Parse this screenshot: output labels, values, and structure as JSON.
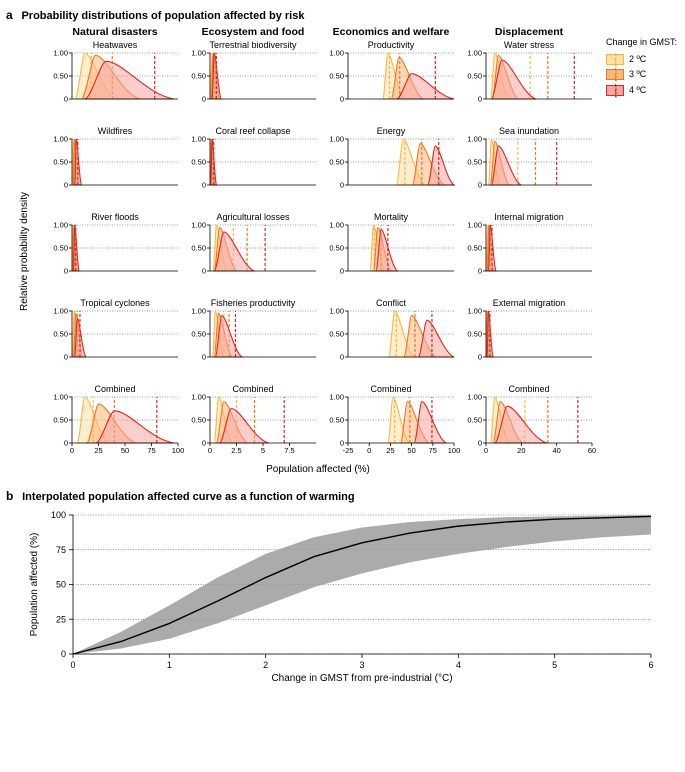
{
  "panelA": {
    "label": "a",
    "title": "Probability distributions of population affected by risk",
    "ylabel": "Relative probability density",
    "xlabel": "Population affected (%)",
    "yticks": [
      0,
      0.5,
      1.0
    ],
    "ytick_labels": [
      "0",
      "0.50",
      "1.00"
    ],
    "columns": [
      "Natural disasters",
      "Ecosystem and food",
      "Economics and welfare",
      "Displacement"
    ],
    "legend": {
      "title": "Change in GMST:",
      "items": [
        {
          "label": "2 ºC",
          "fill": "#fedfa6",
          "stroke": "#f5b942"
        },
        {
          "label": "3 ºC",
          "fill": "#fbb77a",
          "stroke": "#ef7722"
        },
        {
          "label": "4 ºC",
          "fill": "#f5a6a0",
          "stroke": "#e3261f"
        }
      ]
    },
    "colors": {
      "c2_fill": "#fedfa6",
      "c2_stroke": "#f5b942",
      "c3_fill": "#fbb77a",
      "c3_stroke": "#ef7722",
      "c4_fill": "#f5a6a0",
      "c4_stroke": "#e3261f",
      "grid": "#000000",
      "bg": "#ffffff"
    },
    "subplots": [
      [
        {
          "title": "Heatwaves",
          "xmin": 0,
          "xmax": 100,
          "xticks": [
            0,
            25,
            50,
            75,
            100
          ],
          "series": [
            {
              "key": "c2",
              "peak_x": 12,
              "peak_y": 1.0,
              "spread": 18,
              "mean": 18
            },
            {
              "key": "c3",
              "peak_x": 22,
              "peak_y": 0.95,
              "spread": 26,
              "mean": 38
            },
            {
              "key": "c4",
              "peak_x": 32,
              "peak_y": 0.82,
              "spread": 40,
              "mean": 78
            }
          ]
        },
        {
          "title": "Terrestrial biodiversity",
          "xmin": 0,
          "xmax": 10,
          "xticks": [
            0,
            2.5,
            5,
            7.5
          ],
          "series": [
            {
              "key": "c2",
              "peak_x": 0.2,
              "peak_y": 1.0,
              "spread": 0.3,
              "mean": 0.3
            },
            {
              "key": "c3",
              "peak_x": 0.3,
              "peak_y": 1.0,
              "spread": 0.35,
              "mean": 0.45
            },
            {
              "key": "c4",
              "peak_x": 0.4,
              "peak_y": 1.0,
              "spread": 0.4,
              "mean": 0.6
            }
          ]
        },
        {
          "title": "Productivity",
          "xmin": -25,
          "xmax": 100,
          "xticks": [
            -25,
            0,
            25,
            50,
            75,
            100
          ],
          "series": [
            {
              "key": "c2",
              "peak_x": 22,
              "peak_y": 1.0,
              "spread": 12,
              "mean": 24
            },
            {
              "key": "c3",
              "peak_x": 35,
              "peak_y": 0.9,
              "spread": 18,
              "mean": 36
            },
            {
              "key": "c4",
              "peak_x": 50,
              "peak_y": 0.55,
              "spread": 35,
              "mean": 78
            }
          ]
        },
        {
          "title": "Water stress",
          "xmin": 0,
          "xmax": 60,
          "xticks": [
            0,
            20,
            40,
            60
          ],
          "series": [
            {
              "key": "c2",
              "peak_x": 5,
              "peak_y": 1.0,
              "spread": 5,
              "mean": 25
            },
            {
              "key": "c3",
              "peak_x": 7,
              "peak_y": 0.95,
              "spread": 7,
              "mean": 35
            },
            {
              "key": "c4",
              "peak_x": 9,
              "peak_y": 0.85,
              "spread": 12,
              "mean": 50
            }
          ]
        }
      ],
      [
        {
          "title": "Wildfires",
          "xmin": 0,
          "xmax": 100,
          "xticks": [
            0,
            25,
            50,
            75,
            100
          ],
          "series": [
            {
              "key": "c2",
              "peak_x": 1.5,
              "peak_y": 1.0,
              "spread": 2,
              "mean": 2
            },
            {
              "key": "c3",
              "peak_x": 2.5,
              "peak_y": 1.0,
              "spread": 2.5,
              "mean": 3.5
            },
            {
              "key": "c4",
              "peak_x": 4,
              "peak_y": 1.0,
              "spread": 3,
              "mean": 5.5
            }
          ]
        },
        {
          "title": "Coral reef collapse",
          "xmin": 0,
          "xmax": 10,
          "xticks": [
            0,
            2.5,
            5,
            7.5
          ],
          "series": [
            {
              "key": "c2",
              "peak_x": 0.1,
              "peak_y": 1.0,
              "spread": 0.15,
              "mean": 0.15
            },
            {
              "key": "c3",
              "peak_x": 0.15,
              "peak_y": 1.0,
              "spread": 0.2,
              "mean": 0.25
            },
            {
              "key": "c4",
              "peak_x": 0.2,
              "peak_y": 1.0,
              "spread": 0.25,
              "mean": 0.35
            }
          ]
        },
        {
          "title": "Energy",
          "xmin": -25,
          "xmax": 100,
          "xticks": [
            -25,
            0,
            25,
            50,
            75,
            100
          ],
          "series": [
            {
              "key": "c2",
              "peak_x": 40,
              "peak_y": 1.0,
              "spread": 16,
              "mean": 42
            },
            {
              "key": "c3",
              "peak_x": 60,
              "peak_y": 0.9,
              "spread": 18,
              "mean": 62
            },
            {
              "key": "c4",
              "peak_x": 78,
              "peak_y": 0.85,
              "spread": 18,
              "mean": 82
            }
          ]
        },
        {
          "title": "Sea inundation",
          "xmin": 0,
          "xmax": 60,
          "xticks": [
            0,
            20,
            40,
            60
          ],
          "series": [
            {
              "key": "c2",
              "peak_x": 3,
              "peak_y": 1.0,
              "spread": 3,
              "mean": 18
            },
            {
              "key": "c3",
              "peak_x": 5,
              "peak_y": 0.95,
              "spread": 5,
              "mean": 28
            },
            {
              "key": "c4",
              "peak_x": 7,
              "peak_y": 0.85,
              "spread": 8,
              "mean": 40
            }
          ]
        }
      ],
      [
        {
          "title": "River floods",
          "xmin": 0,
          "xmax": 100,
          "xticks": [
            0,
            25,
            50,
            75,
            100
          ],
          "series": [
            {
              "key": "c2",
              "peak_x": 1,
              "peak_y": 1.0,
              "spread": 1.5,
              "mean": 1.5
            },
            {
              "key": "c3",
              "peak_x": 1.8,
              "peak_y": 1.0,
              "spread": 2,
              "mean": 2.5
            },
            {
              "key": "c4",
              "peak_x": 2.6,
              "peak_y": 1.0,
              "spread": 2.5,
              "mean": 3.5
            }
          ]
        },
        {
          "title": "Agricultural losses",
          "xmin": 0,
          "xmax": 10,
          "xticks": [
            0,
            2.5,
            5,
            7.5
          ],
          "series": [
            {
              "key": "c2",
              "peak_x": 0.6,
              "peak_y": 1.0,
              "spread": 0.6,
              "mean": 2.2
            },
            {
              "key": "c3",
              "peak_x": 0.9,
              "peak_y": 0.95,
              "spread": 1.0,
              "mean": 3.5
            },
            {
              "key": "c4",
              "peak_x": 1.3,
              "peak_y": 0.85,
              "spread": 1.8,
              "mean": 5.2
            }
          ]
        },
        {
          "title": "Mortality",
          "xmin": -25,
          "xmax": 100,
          "xticks": [
            -25,
            0,
            25,
            50,
            75,
            100
          ],
          "series": [
            {
              "key": "c2",
              "peak_x": 5,
              "peak_y": 1.0,
              "spread": 8,
              "mean": 6
            },
            {
              "key": "c3",
              "peak_x": 10,
              "peak_y": 0.95,
              "spread": 10,
              "mean": 14
            },
            {
              "key": "c4",
              "peak_x": 14,
              "peak_y": 0.9,
              "spread": 12,
              "mean": 22
            }
          ]
        },
        {
          "title": "Internal migration",
          "xmin": 0,
          "xmax": 60,
          "xticks": [
            0,
            20,
            40,
            60
          ],
          "series": [
            {
              "key": "c2",
              "peak_x": 1,
              "peak_y": 1.0,
              "spread": 1.2,
              "mean": 1.5
            },
            {
              "key": "c3",
              "peak_x": 1.6,
              "peak_y": 1.0,
              "spread": 1.6,
              "mean": 2.4
            },
            {
              "key": "c4",
              "peak_x": 2.4,
              "peak_y": 1.0,
              "spread": 2,
              "mean": 3.4
            }
          ]
        }
      ],
      [
        {
          "title": "Tropical cyclones",
          "xmin": 0,
          "xmax": 100,
          "xticks": [
            0,
            25,
            50,
            75,
            100
          ],
          "series": [
            {
              "key": "c2",
              "peak_x": 2,
              "peak_y": 1.0,
              "spread": 3,
              "mean": 3
            },
            {
              "key": "c3",
              "peak_x": 3.5,
              "peak_y": 0.95,
              "spread": 4,
              "mean": 5
            },
            {
              "key": "c4",
              "peak_x": 5,
              "peak_y": 0.85,
              "spread": 5,
              "mean": 7.5
            }
          ]
        },
        {
          "title": "Fisheries productivity",
          "xmin": 0,
          "xmax": 10,
          "xticks": [
            0,
            2.5,
            5,
            7.5
          ],
          "series": [
            {
              "key": "c2",
              "peak_x": 0.5,
              "peak_y": 1.0,
              "spread": 0.5,
              "mean": 1.3
            },
            {
              "key": "c3",
              "peak_x": 0.8,
              "peak_y": 0.95,
              "spread": 0.8,
              "mean": 1.8
            },
            {
              "key": "c4",
              "peak_x": 1.1,
              "peak_y": 0.9,
              "spread": 1.2,
              "mean": 2.4
            }
          ]
        },
        {
          "title": "Conflict",
          "xmin": -25,
          "xmax": 100,
          "xticks": [
            -25,
            0,
            25,
            50,
            75,
            100
          ],
          "series": [
            {
              "key": "c2",
              "peak_x": 30,
              "peak_y": 1.0,
              "spread": 14,
              "mean": 32
            },
            {
              "key": "c3",
              "peak_x": 50,
              "peak_y": 0.9,
              "spread": 18,
              "mean": 54
            },
            {
              "key": "c4",
              "peak_x": 68,
              "peak_y": 0.8,
              "spread": 20,
              "mean": 74
            }
          ]
        },
        {
          "title": "External migration",
          "xmin": 0,
          "xmax": 60,
          "xticks": [
            0,
            20,
            40,
            60
          ],
          "series": [
            {
              "key": "c2",
              "peak_x": 0.5,
              "peak_y": 1.0,
              "spread": 0.8,
              "mean": 0.8
            },
            {
              "key": "c3",
              "peak_x": 0.9,
              "peak_y": 1.0,
              "spread": 1.2,
              "mean": 1.4
            },
            {
              "key": "c4",
              "peak_x": 1.4,
              "peak_y": 1.0,
              "spread": 1.6,
              "mean": 2.2
            }
          ]
        }
      ],
      [
        {
          "title": "Combined",
          "xmin": 0,
          "xmax": 100,
          "xticks": [
            0,
            25,
            50,
            75,
            100
          ],
          "series": [
            {
              "key": "c2",
              "peak_x": 12,
              "peak_y": 1.0,
              "spread": 14,
              "mean": 20
            },
            {
              "key": "c3",
              "peak_x": 25,
              "peak_y": 0.85,
              "spread": 22,
              "mean": 40
            },
            {
              "key": "c4",
              "peak_x": 40,
              "peak_y": 0.7,
              "spread": 35,
              "mean": 80
            }
          ]
        },
        {
          "title": "Combined",
          "xmin": 0,
          "xmax": 10,
          "xticks": [
            0,
            2.5,
            5,
            7.5
          ],
          "series": [
            {
              "key": "c2",
              "peak_x": 0.8,
              "peak_y": 1.0,
              "spread": 0.8,
              "mean": 2.5
            },
            {
              "key": "c3",
              "peak_x": 1.3,
              "peak_y": 0.9,
              "spread": 1.4,
              "mean": 4.2
            },
            {
              "key": "c4",
              "peak_x": 2,
              "peak_y": 0.75,
              "spread": 2.2,
              "mean": 7.0
            }
          ]
        },
        {
          "title": "Combined",
          "xmin": -25,
          "xmax": 100,
          "xticks": [
            -25,
            0,
            25,
            50,
            75,
            100
          ],
          "series": [
            {
              "key": "c2",
              "peak_x": 28,
              "peak_y": 1.0,
              "spread": 12,
              "mean": 30
            },
            {
              "key": "c3",
              "peak_x": 45,
              "peak_y": 0.9,
              "spread": 16,
              "mean": 48
            },
            {
              "key": "c4",
              "peak_x": 62,
              "peak_y": 0.9,
              "spread": 18,
              "mean": 74
            }
          ]
        },
        {
          "title": "Combined",
          "xmin": 0,
          "xmax": 60,
          "xticks": [
            0,
            20,
            40,
            60
          ],
          "series": [
            {
              "key": "c2",
              "peak_x": 5,
              "peak_y": 1.0,
              "spread": 5,
              "mean": 22
            },
            {
              "key": "c3",
              "peak_x": 8,
              "peak_y": 0.9,
              "spread": 8,
              "mean": 35
            },
            {
              "key": "c4",
              "peak_x": 12,
              "peak_y": 0.8,
              "spread": 14,
              "mean": 52
            }
          ]
        }
      ]
    ]
  },
  "panelB": {
    "label": "b",
    "title": "Interpolated population affected curve as a function of warming",
    "ylabel": "Population affected (%)",
    "xlabel": "Change in GMST from pre-industrial (°C)",
    "xlim": [
      0,
      6
    ],
    "xticks": [
      0,
      1,
      2,
      3,
      4,
      5,
      6
    ],
    "ylim": [
      0,
      100
    ],
    "yticks": [
      0,
      25,
      50,
      75,
      100
    ],
    "band_color": "#9c9c9c",
    "line_color": "#000000",
    "median": [
      [
        0,
        0
      ],
      [
        0.5,
        9
      ],
      [
        1,
        22
      ],
      [
        1.5,
        38
      ],
      [
        2,
        55
      ],
      [
        2.5,
        70
      ],
      [
        3,
        80
      ],
      [
        3.5,
        87
      ],
      [
        4,
        92
      ],
      [
        4.5,
        95
      ],
      [
        5,
        97
      ],
      [
        5.5,
        98
      ],
      [
        6,
        99
      ]
    ],
    "upper": [
      [
        0,
        0
      ],
      [
        0.5,
        16
      ],
      [
        1,
        35
      ],
      [
        1.5,
        55
      ],
      [
        2,
        72
      ],
      [
        2.5,
        84
      ],
      [
        3,
        91
      ],
      [
        3.5,
        95
      ],
      [
        4,
        97
      ],
      [
        4.5,
        98.5
      ],
      [
        5,
        99
      ],
      [
        5.5,
        99.5
      ],
      [
        6,
        100
      ]
    ],
    "lower": [
      [
        0,
        0
      ],
      [
        0.5,
        4
      ],
      [
        1,
        11
      ],
      [
        1.5,
        22
      ],
      [
        2,
        35
      ],
      [
        2.5,
        48
      ],
      [
        3,
        58
      ],
      [
        3.5,
        66
      ],
      [
        4,
        72
      ],
      [
        4.5,
        77
      ],
      [
        5,
        81
      ],
      [
        5.5,
        84
      ],
      [
        6,
        86
      ]
    ]
  }
}
